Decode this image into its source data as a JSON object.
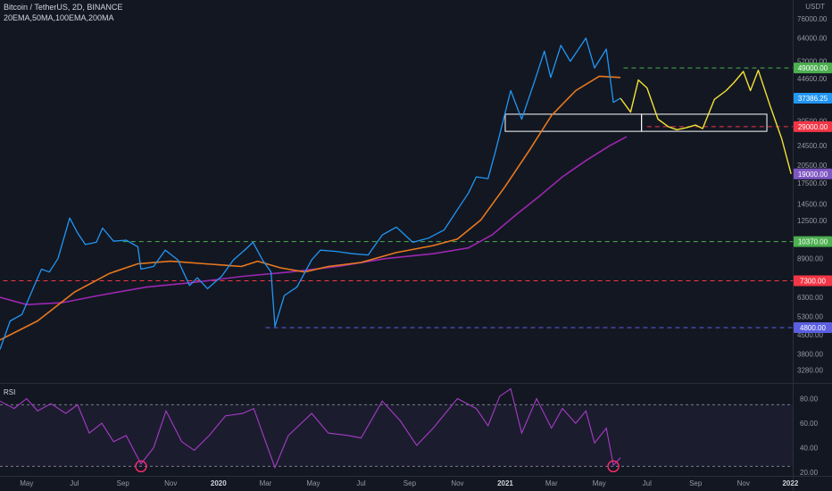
{
  "header": {
    "title": "Bitcoin / TetherUS, 2D, BINANCE",
    "indicators": "20EMA,50MA,100EMA,200MA",
    "currency": "USDT"
  },
  "rsi_pane": {
    "label": "RSI"
  },
  "colors": {
    "background": "#131722",
    "price": "#2196f3",
    "projection": "#f2e234",
    "ma_orange": "#e8791e",
    "ma_purple": "#9c27b0",
    "rsi": "#a43dc4",
    "green_level": "#4caf50",
    "red_level": "#f23645",
    "blue_level": "#5b5fe0",
    "purple_tag": "#7e57c2",
    "rsi_circle": "#ff2d6e"
  },
  "chart_data": [
    {
      "type": "line",
      "scale": "log",
      "price_axis_ticks": [
        "76000.00",
        "64000.00",
        "52000.00",
        "44600.00",
        "37000.00",
        "30500.00",
        "24500.00",
        "20500.00",
        "17500.00",
        "14500.00",
        "12500.00",
        "8900.00",
        "6300.00",
        "5300.00",
        "4500.00",
        "3800.00",
        "3280.00"
      ],
      "time_axis_ticks": [
        "May",
        "Jul",
        "Sep",
        "Nov",
        "2020",
        "Mar",
        "May",
        "Jul",
        "Sep",
        "Nov",
        "2021",
        "Mar",
        "May",
        "Jul",
        "Sep",
        "Nov",
        "2022"
      ],
      "ylim": [
        2950,
        90000
      ],
      "price_tags": [
        {
          "label": "49000.00",
          "value": 49000,
          "color": "#4caf50"
        },
        {
          "label": "37386.25",
          "value": 37386,
          "color": "#2196f3"
        },
        {
          "label": "29000.00",
          "value": 29000,
          "color": "#f23645"
        },
        {
          "label": "19000.00",
          "value": 19000,
          "color": "#7e57c2"
        },
        {
          "label": "10370.00",
          "value": 10370,
          "color": "#4caf50"
        },
        {
          "label": "7300.00",
          "value": 7300,
          "color": "#f23645"
        },
        {
          "label": "4800.00",
          "value": 4800,
          "color": "#5b5fe0"
        }
      ],
      "horizontal_levels": [
        {
          "value": 49000,
          "from": "2021-06",
          "color": "#4caf50"
        },
        {
          "value": 29000,
          "from": "2021-07",
          "color": "#f23645"
        },
        {
          "value": 10370,
          "from": "2019-09",
          "color": "#4caf50"
        },
        {
          "value": 7300,
          "from": "2019-04",
          "color": "#f23645"
        },
        {
          "value": 4800,
          "from": "2020-03",
          "color": "#5b5fe0"
        }
      ],
      "zone": {
        "from": "2021-01",
        "to": "2021-12",
        "low": 27800,
        "high": 32400
      },
      "series": [
        {
          "key": "price",
          "points": [
            [
              "2019-03-28",
              3950
            ],
            [
              "2019-04-10",
              5100
            ],
            [
              "2019-04-25",
              5400
            ],
            [
              "2019-05-10",
              6900
            ],
            [
              "2019-05-20",
              8100
            ],
            [
              "2019-05-30",
              7900
            ],
            [
              "2019-06-10",
              8900
            ],
            [
              "2019-06-25",
              12800
            ],
            [
              "2019-07-05",
              11200
            ],
            [
              "2019-07-15",
              10100
            ],
            [
              "2019-07-29",
              10300
            ],
            [
              "2019-08-06",
              11700
            ],
            [
              "2019-08-20",
              10400
            ],
            [
              "2019-09-05",
              10500
            ],
            [
              "2019-09-20",
              9900
            ],
            [
              "2019-09-24",
              8100
            ],
            [
              "2019-10-10",
              8300
            ],
            [
              "2019-10-25",
              9600
            ],
            [
              "2019-11-10",
              8800
            ],
            [
              "2019-11-25",
              7000
            ],
            [
              "2019-12-05",
              7500
            ],
            [
              "2019-12-18",
              6800
            ],
            [
              "2020-01-05",
              7600
            ],
            [
              "2020-01-20",
              8800
            ],
            [
              "2020-02-05",
              9700
            ],
            [
              "2020-02-14",
              10300
            ],
            [
              "2020-02-26",
              8800
            ],
            [
              "2020-03-08",
              7900
            ],
            [
              "2020-03-13",
              4850
            ],
            [
              "2020-03-25",
              6400
            ],
            [
              "2020-04-10",
              6900
            ],
            [
              "2020-04-29",
              8800
            ],
            [
              "2020-05-10",
              9600
            ],
            [
              "2020-05-30",
              9500
            ],
            [
              "2020-06-20",
              9300
            ],
            [
              "2020-07-10",
              9200
            ],
            [
              "2020-07-28",
              11000
            ],
            [
              "2020-08-15",
              11800
            ],
            [
              "2020-09-05",
              10300
            ],
            [
              "2020-09-25",
              10700
            ],
            [
              "2020-10-15",
              11500
            ],
            [
              "2020-11-01",
              13800
            ],
            [
              "2020-11-15",
              16000
            ],
            [
              "2020-11-25",
              18500
            ],
            [
              "2020-12-10",
              18200
            ],
            [
              "2020-12-20",
              23500
            ],
            [
              "2021-01-08",
              40000
            ],
            [
              "2021-01-22",
              31000
            ],
            [
              "2021-02-08",
              44000
            ],
            [
              "2021-02-20",
              57000
            ],
            [
              "2021-02-28",
              45000
            ],
            [
              "2021-03-13",
              60000
            ],
            [
              "2021-03-25",
              52000
            ],
            [
              "2021-04-14",
              64000
            ],
            [
              "2021-04-25",
              49000
            ],
            [
              "2021-05-10",
              58000
            ],
            [
              "2021-05-19",
              36000
            ],
            [
              "2021-05-28",
              37386
            ]
          ]
        },
        {
          "key": "projection",
          "points": [
            [
              "2021-05-28",
              37386
            ],
            [
              "2021-06-10",
              33000
            ],
            [
              "2021-06-20",
              44000
            ],
            [
              "2021-07-01",
              41000
            ],
            [
              "2021-07-15",
              31000
            ],
            [
              "2021-07-28",
              29000
            ],
            [
              "2021-08-08",
              28200
            ],
            [
              "2021-08-20",
              28700
            ],
            [
              "2021-09-01",
              29400
            ],
            [
              "2021-09-10",
              28500
            ],
            [
              "2021-09-25",
              37000
            ],
            [
              "2021-10-10",
              40000
            ],
            [
              "2021-10-20",
              43000
            ],
            [
              "2021-11-01",
              47500
            ],
            [
              "2021-11-10",
              40000
            ],
            [
              "2021-11-20",
              48000
            ],
            [
              "2021-12-05",
              35000
            ],
            [
              "2021-12-20",
              26000
            ],
            [
              "2022-01-01",
              19000
            ]
          ]
        },
        {
          "key": "ma_orange",
          "points": [
            [
              "2019-03-28",
              4300
            ],
            [
              "2019-05-15",
              5100
            ],
            [
              "2019-07-01",
              6600
            ],
            [
              "2019-08-15",
              7800
            ],
            [
              "2019-09-20",
              8500
            ],
            [
              "2019-11-01",
              8700
            ],
            [
              "2019-12-15",
              8500
            ],
            [
              "2020-01-30",
              8300
            ],
            [
              "2020-02-20",
              8700
            ],
            [
              "2020-03-20",
              8200
            ],
            [
              "2020-04-20",
              7900
            ],
            [
              "2020-05-20",
              8300
            ],
            [
              "2020-07-01",
              8600
            ],
            [
              "2020-08-15",
              9400
            ],
            [
              "2020-10-01",
              10000
            ],
            [
              "2020-11-01",
              10600
            ],
            [
              "2020-12-01",
              12600
            ],
            [
              "2021-01-01",
              17000
            ],
            [
              "2021-02-01",
              23500
            ],
            [
              "2021-03-01",
              32000
            ],
            [
              "2021-04-01",
              40000
            ],
            [
              "2021-05-01",
              45500
            ],
            [
              "2021-05-28",
              45000
            ]
          ]
        },
        {
          "key": "ma_purple",
          "points": [
            [
              "2019-03-28",
              6300
            ],
            [
              "2019-05-01",
              5900
            ],
            [
              "2019-06-15",
              6000
            ],
            [
              "2019-08-01",
              6400
            ],
            [
              "2019-10-01",
              6900
            ],
            [
              "2019-12-01",
              7200
            ],
            [
              "2020-02-01",
              7600
            ],
            [
              "2020-04-01",
              7900
            ],
            [
              "2020-06-01",
              8300
            ],
            [
              "2020-08-01",
              8900
            ],
            [
              "2020-10-01",
              9300
            ],
            [
              "2020-11-15",
              9800
            ],
            [
              "2020-12-15",
              11000
            ],
            [
              "2021-01-15",
              13200
            ],
            [
              "2021-02-15",
              15700
            ],
            [
              "2021-03-15",
              18500
            ],
            [
              "2021-04-15",
              21500
            ],
            [
              "2021-05-15",
              24500
            ],
            [
              "2021-06-05",
              26500
            ]
          ]
        }
      ]
    },
    {
      "type": "line",
      "title": "RSI",
      "ylim": [
        18,
        92
      ],
      "y_ticks": [
        "80.00",
        "60.00",
        "40.00",
        "20.00"
      ],
      "bands": [
        75,
        25
      ],
      "circled_lows": [
        {
          "x": "2019-09-24",
          "value": 25
        },
        {
          "x": "2021-05-19",
          "value": 25
        }
      ],
      "series": [
        {
          "key": "rsi",
          "points": [
            [
              "2019-03-28",
              78
            ],
            [
              "2019-04-15",
              72
            ],
            [
              "2019-05-01",
              80
            ],
            [
              "2019-05-15",
              70
            ],
            [
              "2019-06-01",
              76
            ],
            [
              "2019-06-20",
              68
            ],
            [
              "2019-07-05",
              75
            ],
            [
              "2019-07-20",
              52
            ],
            [
              "2019-08-05",
              60
            ],
            [
              "2019-08-20",
              45
            ],
            [
              "2019-09-05",
              50
            ],
            [
              "2019-09-24",
              27
            ],
            [
              "2019-10-10",
              40
            ],
            [
              "2019-10-26",
              70
            ],
            [
              "2019-11-15",
              45
            ],
            [
              "2019-12-01",
              38
            ],
            [
              "2019-12-20",
              50
            ],
            [
              "2020-01-10",
              66
            ],
            [
              "2020-02-01",
              68
            ],
            [
              "2020-02-15",
              72
            ],
            [
              "2020-03-01",
              45
            ],
            [
              "2020-03-13",
              24
            ],
            [
              "2020-03-30",
              50
            ],
            [
              "2020-04-29",
              68
            ],
            [
              "2020-05-20",
              52
            ],
            [
              "2020-06-15",
              50
            ],
            [
              "2020-07-01",
              48
            ],
            [
              "2020-07-28",
              78
            ],
            [
              "2020-08-20",
              62
            ],
            [
              "2020-09-10",
              42
            ],
            [
              "2020-10-01",
              56
            ],
            [
              "2020-11-01",
              80
            ],
            [
              "2020-11-25",
              72
            ],
            [
              "2020-12-10",
              58
            ],
            [
              "2020-12-25",
              82
            ],
            [
              "2021-01-08",
              88
            ],
            [
              "2021-01-22",
              52
            ],
            [
              "2021-02-10",
              80
            ],
            [
              "2021-03-01",
              56
            ],
            [
              "2021-03-15",
              72
            ],
            [
              "2021-04-01",
              60
            ],
            [
              "2021-04-14",
              70
            ],
            [
              "2021-04-25",
              44
            ],
            [
              "2021-05-10",
              56
            ],
            [
              "2021-05-19",
              26
            ],
            [
              "2021-05-28",
              32
            ]
          ]
        }
      ]
    }
  ]
}
